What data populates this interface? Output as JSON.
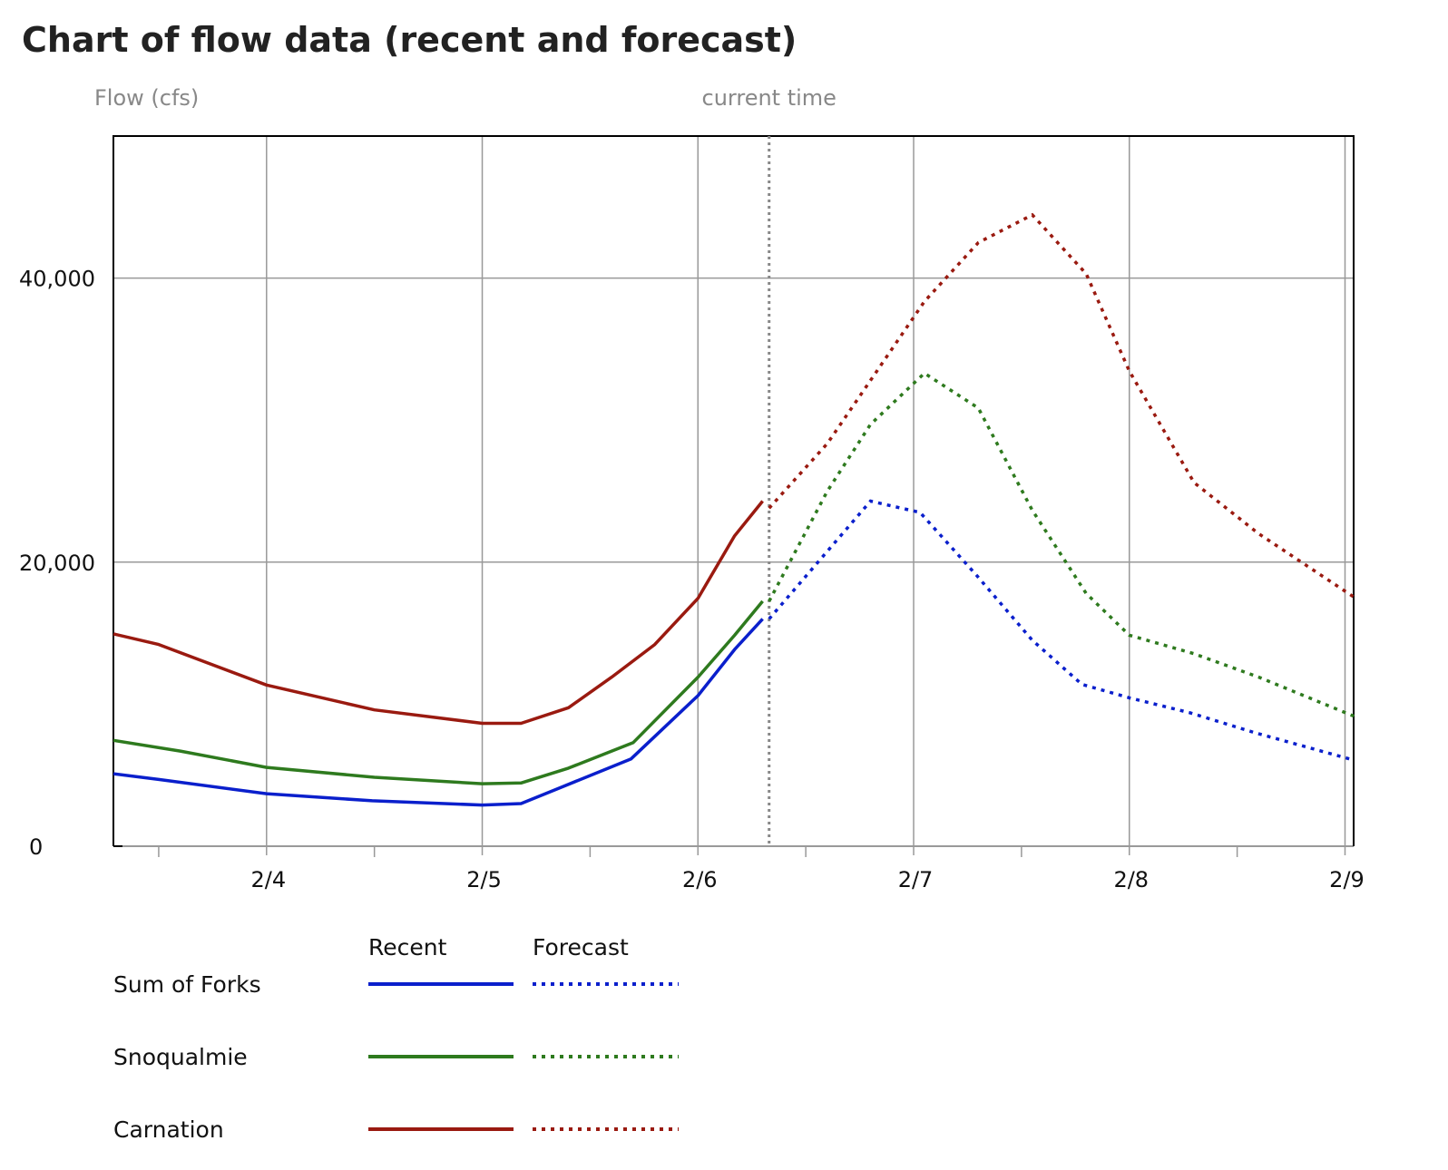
{
  "title": "Chart of flow data (recent and forecast)",
  "chart_data": {
    "type": "line",
    "title": "Chart of flow data (recent and forecast)",
    "ylabel": "Flow (cfs)",
    "current_time_label": "current time",
    "x_unit": "days since 2/4 00:00",
    "xlim": [
      -0.71,
      5.04
    ],
    "ylim": [
      0,
      50000
    ],
    "current_time": 2.33,
    "yticks": [
      {
        "v": 0,
        "label": "0"
      },
      {
        "v": 20000,
        "label": "20,000"
      },
      {
        "v": 40000,
        "label": "40,000"
      }
    ],
    "xticks": [
      {
        "v": 0,
        "label": "2/4"
      },
      {
        "v": 1,
        "label": "2/5"
      },
      {
        "v": 2,
        "label": "2/6"
      },
      {
        "v": 3,
        "label": "2/7"
      },
      {
        "v": 4,
        "label": "2/8"
      },
      {
        "v": 5,
        "label": "2/9"
      }
    ],
    "legend": {
      "recent_label": "Recent",
      "forecast_label": "Forecast"
    },
    "series": [
      {
        "name": "Sum of Forks",
        "color": "#0a1fcc",
        "recent": [
          [
            -0.71,
            5100
          ],
          [
            -0.5,
            4700
          ],
          [
            0,
            3700
          ],
          [
            0.49,
            3200
          ],
          [
            1.0,
            2900
          ],
          [
            1.18,
            3000
          ],
          [
            1.35,
            4050
          ],
          [
            1.69,
            6150
          ],
          [
            2.0,
            10600
          ],
          [
            2.17,
            13850
          ],
          [
            2.3,
            16000
          ]
        ],
        "forecast": [
          [
            2.33,
            16000
          ],
          [
            2.8,
            24300
          ],
          [
            3.03,
            23500
          ],
          [
            3.29,
            19100
          ],
          [
            3.55,
            14500
          ],
          [
            3.78,
            11400
          ],
          [
            4.0,
            10450
          ],
          [
            4.28,
            9400
          ],
          [
            4.58,
            8000
          ],
          [
            5.02,
            6150
          ]
        ]
      },
      {
        "name": "Snoqualmie",
        "color": "#2e7a1e",
        "recent": [
          [
            -0.71,
            7450
          ],
          [
            -0.4,
            6700
          ],
          [
            0,
            5550
          ],
          [
            0.5,
            4850
          ],
          [
            1.0,
            4400
          ],
          [
            1.18,
            4450
          ],
          [
            1.4,
            5500
          ],
          [
            1.7,
            7300
          ],
          [
            2.0,
            11900
          ],
          [
            2.17,
            14850
          ],
          [
            2.3,
            17250
          ]
        ],
        "forecast": [
          [
            2.33,
            17250
          ],
          [
            2.6,
            25000
          ],
          [
            2.8,
            29700
          ],
          [
            3.05,
            33300
          ],
          [
            3.3,
            30850
          ],
          [
            3.55,
            23650
          ],
          [
            3.8,
            17800
          ],
          [
            4.0,
            14850
          ],
          [
            4.3,
            13550
          ],
          [
            4.6,
            11900
          ],
          [
            5.05,
            9100
          ]
        ]
      },
      {
        "name": "Carnation",
        "color": "#9a1a10",
        "recent": [
          [
            -0.71,
            14950
          ],
          [
            -0.5,
            14200
          ],
          [
            0,
            11350
          ],
          [
            0.5,
            9600
          ],
          [
            1.0,
            8650
          ],
          [
            1.18,
            8650
          ],
          [
            1.4,
            9750
          ],
          [
            1.6,
            11900
          ],
          [
            1.8,
            14200
          ],
          [
            2.0,
            17450
          ],
          [
            2.17,
            21850
          ],
          [
            2.3,
            24300
          ]
        ],
        "forecast": [
          [
            2.33,
            23800
          ],
          [
            2.6,
            28350
          ],
          [
            2.8,
            32800
          ],
          [
            3.05,
            38350
          ],
          [
            3.3,
            42500
          ],
          [
            3.55,
            44450
          ],
          [
            3.8,
            40300
          ],
          [
            4.0,
            33450
          ],
          [
            4.3,
            25600
          ],
          [
            4.6,
            22000
          ],
          [
            5.05,
            17450
          ]
        ]
      }
    ]
  }
}
